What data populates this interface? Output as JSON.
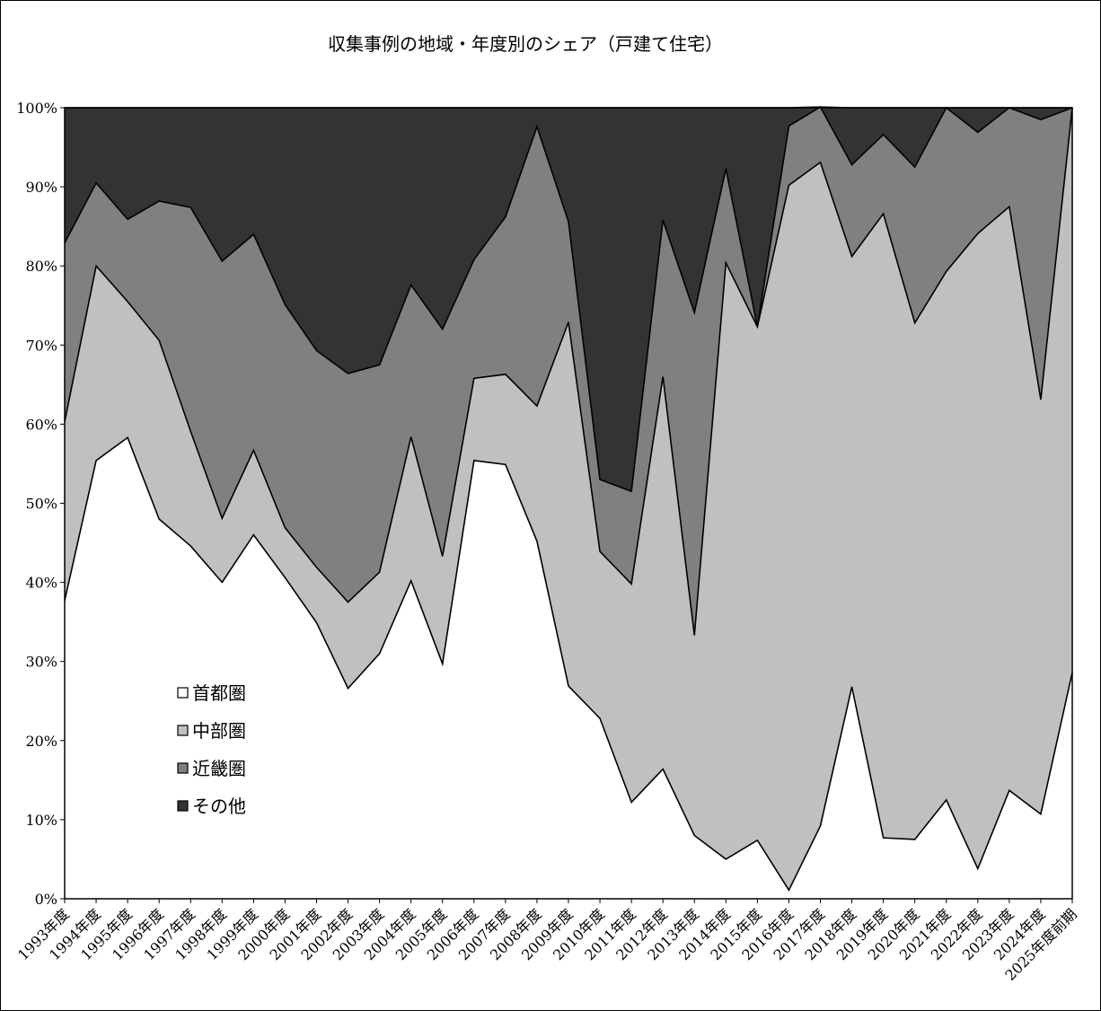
{
  "chart_data": {
    "type": "area",
    "stacked": "percent",
    "title": "収集事例の地域・年度別のシェア（戸建て住宅）",
    "xlabel": "",
    "ylabel": "",
    "ylim": [
      0,
      100
    ],
    "yticks": [
      "0%",
      "10%",
      "20%",
      "30%",
      "40%",
      "50%",
      "60%",
      "70%",
      "80%",
      "90%",
      "100%"
    ],
    "grid": false,
    "legend_position": "left-center",
    "categories": [
      "1993年度",
      "1994年度",
      "1995年度",
      "1996年度",
      "1997年度",
      "1998年度",
      "1999年度",
      "2000年度",
      "2001年度",
      "2002年度",
      "2003年度",
      "2004年度",
      "2005年度",
      "2006年度",
      "2007年度",
      "2008年度",
      "2009年度",
      "2010年度",
      "2011年度",
      "2012年度",
      "2013年度",
      "2014年度",
      "2015年度",
      "2016年度",
      "2017年度",
      "2018年度",
      "2019年度",
      "2020年度",
      "2021年度",
      "2022年度",
      "2023年度",
      "2024年度",
      "2025年度前期"
    ],
    "series": [
      {
        "name": "首都圏",
        "color": "#ffffff",
        "values": [
          37.7,
          55.4,
          58.3,
          48.0,
          44.6,
          40.0,
          46.0,
          40.6,
          34.9,
          26.6,
          31.0,
          40.2,
          29.7,
          55.4,
          54.9,
          45.2,
          26.9,
          22.8,
          12.2,
          16.4,
          8.0,
          5.0,
          7.4,
          1.1,
          9.2,
          26.8,
          7.7,
          7.5,
          12.5,
          3.8,
          13.7,
          10.7,
          28.6
        ]
      },
      {
        "name": "中部圏",
        "color": "#c0c0c0",
        "values": [
          22.6,
          24.6,
          17.2,
          22.6,
          14.5,
          8.1,
          10.7,
          6.3,
          7.0,
          10.9,
          10.3,
          18.2,
          13.6,
          10.4,
          11.4,
          17.1,
          46.0,
          21.1,
          27.6,
          49.6,
          25.3,
          75.4,
          64.9,
          89.1,
          83.9,
          54.4,
          78.9,
          65.3,
          66.8,
          80.3,
          73.8,
          52.4,
          71.4
        ]
      },
      {
        "name": "近畿圏",
        "color": "#808080",
        "values": [
          22.6,
          10.5,
          10.4,
          17.6,
          28.3,
          32.5,
          27.3,
          28.2,
          27.4,
          28.9,
          26.2,
          19.2,
          28.7,
          15.0,
          19.9,
          35.3,
          12.7,
          9.1,
          11.7,
          19.8,
          40.8,
          11.9,
          0.0,
          7.5,
          7.0,
          11.6,
          10.0,
          19.7,
          20.7,
          12.8,
          12.5,
          35.4,
          0.0
        ]
      },
      {
        "name": "その他",
        "color": "#333333",
        "values": [
          17.1,
          9.5,
          14.1,
          11.8,
          12.6,
          19.4,
          16.0,
          24.9,
          30.7,
          33.6,
          32.5,
          22.4,
          28.0,
          19.2,
          13.8,
          2.4,
          14.4,
          47.0,
          48.5,
          14.2,
          25.9,
          7.7,
          27.7,
          2.3,
          0.0,
          7.2,
          3.4,
          7.5,
          0.0,
          3.1,
          0.0,
          1.5,
          0.0
        ]
      }
    ]
  }
}
